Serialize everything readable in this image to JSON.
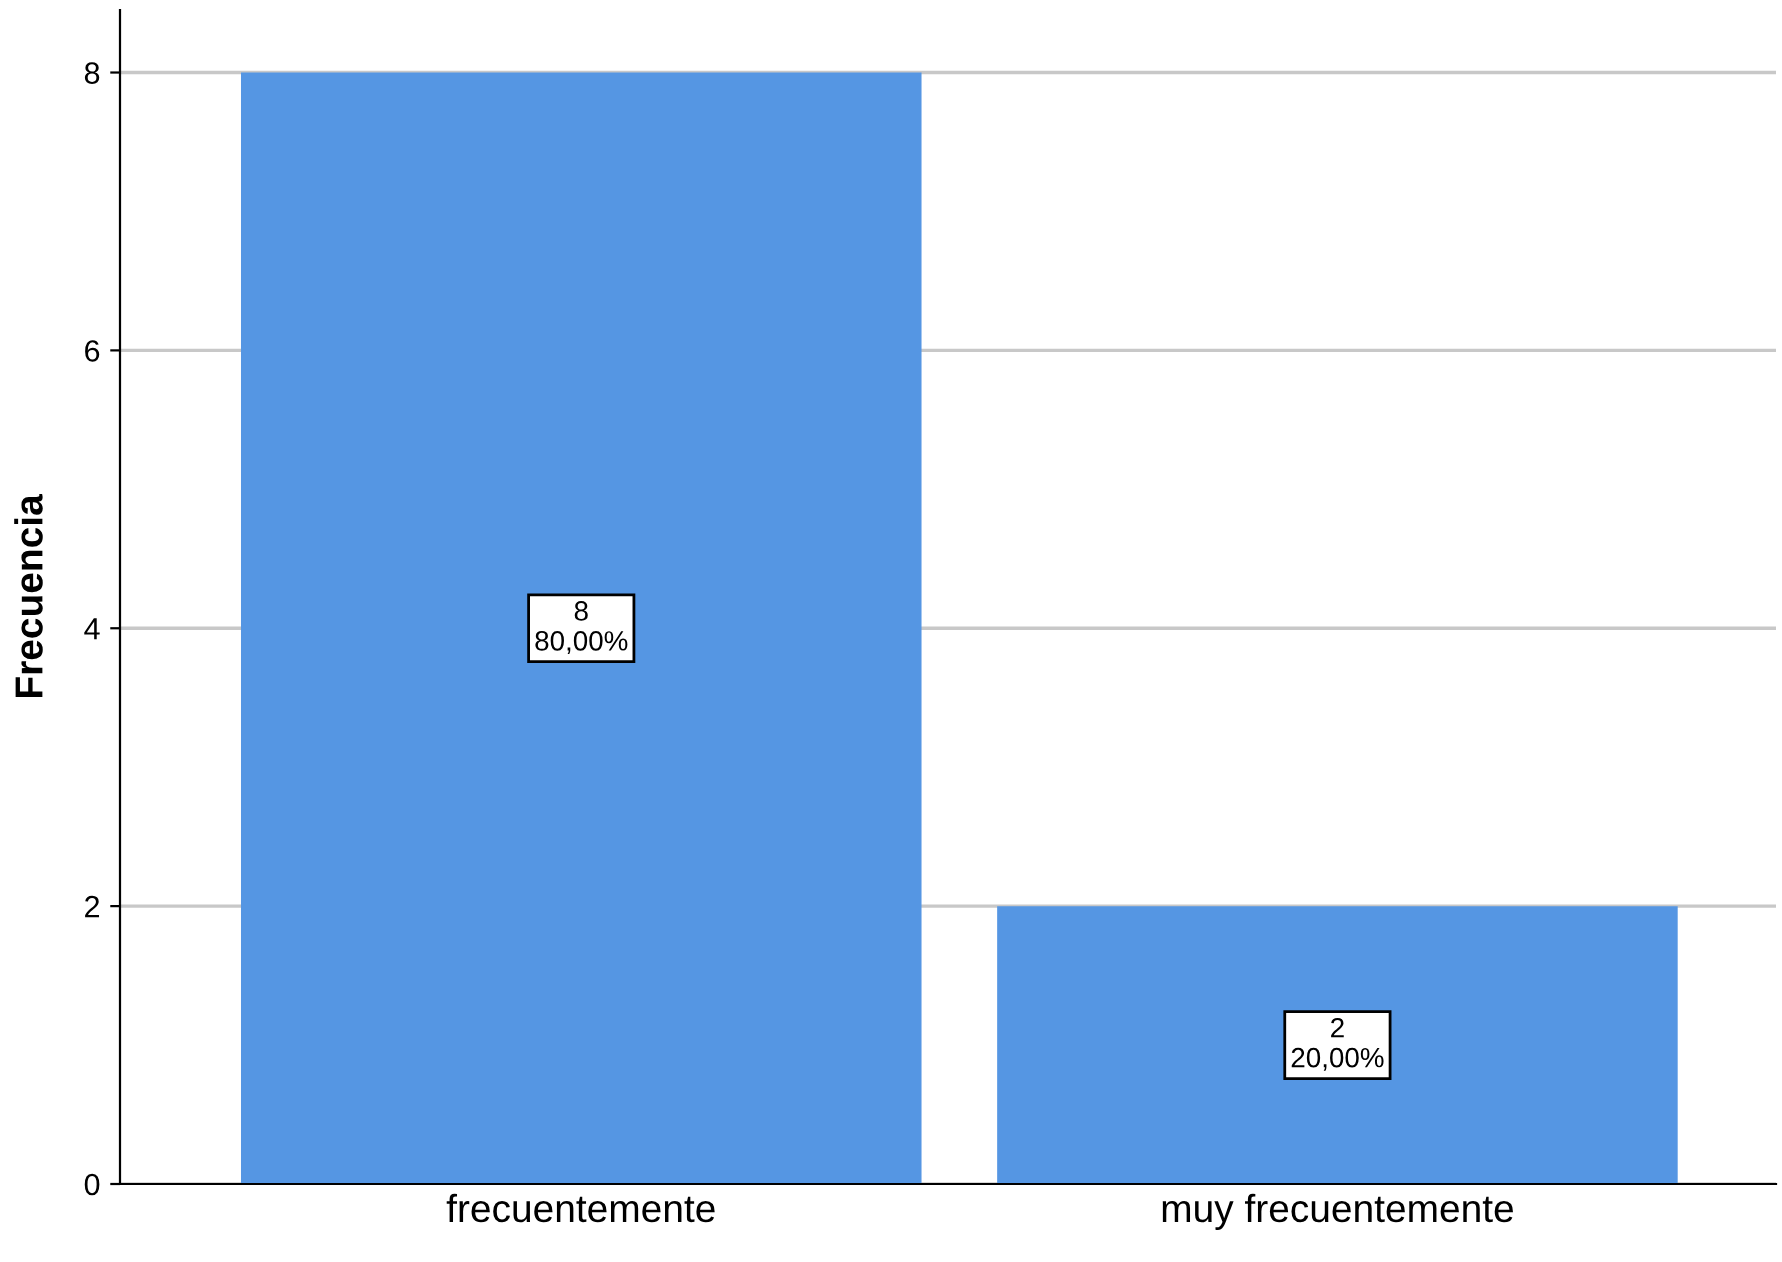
{
  "chart_data": {
    "type": "bar",
    "ylabel": "Frecuencia",
    "categories": [
      "frecuentemente",
      "muy frecuentemente"
    ],
    "values": [
      8,
      2
    ],
    "value_labels": [
      "8\n80,00%",
      "2\n20,00%"
    ],
    "color": "#5596e3",
    "ylim": [
      0,
      8.45
    ],
    "yticks": [
      0,
      2,
      4,
      6,
      8
    ],
    "grid": "y"
  }
}
